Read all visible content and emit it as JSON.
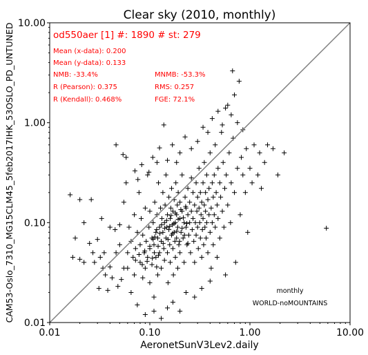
{
  "chart_data": {
    "type": "scatter",
    "title": "Clear sky (2010, monthly)",
    "xlabel": "AeronetSunV3Lev2.daily",
    "ylabel": "CAM53-Oslo_7310_MG15CLM45_5feb2017IHK_53OSLO_PD_UNTUNED",
    "xscale": "log",
    "yscale": "log",
    "xlim": [
      0.01,
      10.0
    ],
    "ylim": [
      0.01,
      10.0
    ],
    "xticks": [
      "0.01",
      "0.10",
      "1.00",
      "10.00"
    ],
    "yticks": [
      "0.01",
      "0.10",
      "1.00",
      "10.00"
    ],
    "tick_values": [
      0.01,
      0.1,
      1.0,
      10.0
    ],
    "grid": false,
    "marker": "+",
    "marker_color": "#000000",
    "reference_line": {
      "type": "1:1",
      "color": "#808080"
    },
    "annotations": {
      "color": "#ff0000",
      "header": "od550aer [1] #: 1890 # st: 279",
      "left": [
        "Mean (x-data): 0.200",
        "Mean (y-data): 0.133",
        "NMB: -33.4%",
        "R (Pearson): 0.375",
        "R (Kendall): 0.468%"
      ],
      "right": [
        "MNMB: -53.3%",
        "RMS: 0.257",
        "FGE: 72.1%"
      ]
    },
    "footer_notes": [
      "monthly",
      "WORLD-noMOUNTAINS"
    ],
    "series": [
      {
        "points": [
          [
            0.016,
            0.19
          ],
          [
            0.017,
            0.045
          ],
          [
            0.018,
            0.07
          ],
          [
            0.02,
            0.043
          ],
          [
            0.02,
            0.17
          ],
          [
            0.022,
            0.04
          ],
          [
            0.022,
            0.1
          ],
          [
            0.025,
            0.062
          ],
          [
            0.027,
            0.05
          ],
          [
            0.028,
            0.04
          ],
          [
            0.03,
            0.068
          ],
          [
            0.031,
            0.022
          ],
          [
            0.032,
            0.045
          ],
          [
            0.034,
            0.035
          ],
          [
            0.035,
            0.05
          ],
          [
            0.036,
            0.03
          ],
          [
            0.038,
            0.021
          ],
          [
            0.04,
            0.09
          ],
          [
            0.04,
            0.036
          ],
          [
            0.042,
            0.028
          ],
          [
            0.045,
            0.085
          ],
          [
            0.046,
            0.05
          ],
          [
            0.048,
            0.023
          ],
          [
            0.05,
            0.095
          ],
          [
            0.05,
            0.06
          ],
          [
            0.052,
            0.027
          ],
          [
            0.055,
            0.16
          ],
          [
            0.055,
            0.035
          ],
          [
            0.058,
            0.25
          ],
          [
            0.06,
            0.05
          ],
          [
            0.06,
            0.035
          ],
          [
            0.062,
            0.09
          ],
          [
            0.065,
            0.02
          ],
          [
            0.065,
            0.065
          ],
          [
            0.068,
            0.045
          ],
          [
            0.07,
            0.12
          ],
          [
            0.07,
            0.03
          ],
          [
            0.072,
            0.055
          ],
          [
            0.075,
            0.08
          ],
          [
            0.075,
            0.015
          ],
          [
            0.078,
            0.2
          ],
          [
            0.08,
            0.04
          ],
          [
            0.08,
            0.06
          ],
          [
            0.082,
            0.11
          ],
          [
            0.085,
            0.028
          ],
          [
            0.085,
            0.075
          ],
          [
            0.088,
            0.05
          ],
          [
            0.09,
            0.14
          ],
          [
            0.09,
            0.035
          ],
          [
            0.092,
            0.065
          ],
          [
            0.095,
            0.3
          ],
          [
            0.095,
            0.045
          ],
          [
            0.098,
            0.09
          ],
          [
            0.1,
            0.025
          ],
          [
            0.1,
            0.055
          ],
          [
            0.1,
            0.13
          ],
          [
            0.105,
            0.07
          ],
          [
            0.105,
            0.038
          ],
          [
            0.108,
            0.1
          ],
          [
            0.11,
            0.018
          ],
          [
            0.11,
            0.06
          ],
          [
            0.112,
            0.16
          ],
          [
            0.115,
            0.08
          ],
          [
            0.115,
            0.045
          ],
          [
            0.118,
            0.12
          ],
          [
            0.12,
            0.03
          ],
          [
            0.12,
            0.07
          ],
          [
            0.122,
            0.25
          ],
          [
            0.125,
            0.09
          ],
          [
            0.125,
            0.05
          ],
          [
            0.128,
            0.14
          ],
          [
            0.13,
            0.065
          ],
          [
            0.13,
            0.035
          ],
          [
            0.132,
            0.11
          ],
          [
            0.135,
            0.08
          ],
          [
            0.135,
            0.2
          ],
          [
            0.138,
            0.055
          ],
          [
            0.14,
            0.1
          ],
          [
            0.14,
            0.042
          ],
          [
            0.142,
            0.15
          ],
          [
            0.145,
            0.07
          ],
          [
            0.145,
            0.3
          ],
          [
            0.148,
            0.09
          ],
          [
            0.15,
            0.05
          ],
          [
            0.15,
            0.12
          ],
          [
            0.152,
            0.025
          ],
          [
            0.155,
            0.085
          ],
          [
            0.155,
            0.18
          ],
          [
            0.158,
            0.06
          ],
          [
            0.16,
            0.11
          ],
          [
            0.16,
            0.04
          ],
          [
            0.162,
            0.14
          ],
          [
            0.165,
            0.075
          ],
          [
            0.165,
            0.22
          ],
          [
            0.168,
            0.095
          ],
          [
            0.17,
            0.055
          ],
          [
            0.17,
            0.13
          ],
          [
            0.172,
            0.03
          ],
          [
            0.175,
            0.08
          ],
          [
            0.175,
            0.17
          ],
          [
            0.178,
            0.065
          ],
          [
            0.18,
            0.1
          ],
          [
            0.18,
            0.045
          ],
          [
            0.182,
            0.25
          ],
          [
            0.185,
            0.12
          ],
          [
            0.185,
            0.07
          ],
          [
            0.188,
            0.15
          ],
          [
            0.19,
            0.09
          ],
          [
            0.19,
            0.035
          ],
          [
            0.192,
            0.2
          ],
          [
            0.195,
            0.06
          ],
          [
            0.2,
            0.11
          ],
          [
            0.2,
            0.16
          ],
          [
            0.2,
            0.05
          ],
          [
            0.205,
            0.08
          ],
          [
            0.21,
            0.13
          ],
          [
            0.21,
            0.3
          ],
          [
            0.215,
            0.07
          ],
          [
            0.22,
            0.1
          ],
          [
            0.22,
            0.04
          ],
          [
            0.225,
            0.18
          ],
          [
            0.23,
            0.09
          ],
          [
            0.23,
            0.14
          ],
          [
            0.235,
            0.06
          ],
          [
            0.24,
            0.12
          ],
          [
            0.24,
            0.22
          ],
          [
            0.245,
            0.075
          ],
          [
            0.25,
            0.1
          ],
          [
            0.25,
            0.16
          ],
          [
            0.255,
            0.05
          ],
          [
            0.26,
            0.13
          ],
          [
            0.26,
            0.28
          ],
          [
            0.265,
            0.085
          ],
          [
            0.27,
            0.2
          ],
          [
            0.27,
            0.11
          ],
          [
            0.275,
            0.065
          ],
          [
            0.28,
            0.15
          ],
          [
            0.28,
            0.04
          ],
          [
            0.285,
            0.1
          ],
          [
            0.29,
            0.25
          ],
          [
            0.29,
            0.075
          ],
          [
            0.295,
            0.13
          ],
          [
            0.3,
            0.18
          ],
          [
            0.3,
            0.09
          ],
          [
            0.305,
            0.055
          ],
          [
            0.31,
            0.14
          ],
          [
            0.31,
            0.35
          ],
          [
            0.315,
            0.1
          ],
          [
            0.32,
            0.2
          ],
          [
            0.32,
            0.07
          ],
          [
            0.325,
            0.12
          ],
          [
            0.33,
            0.16
          ],
          [
            0.33,
            0.045
          ],
          [
            0.335,
            0.085
          ],
          [
            0.34,
            0.25
          ],
          [
            0.34,
            0.11
          ],
          [
            0.345,
            0.06
          ],
          [
            0.35,
            0.15
          ],
          [
            0.35,
            0.4
          ],
          [
            0.355,
            0.09
          ],
          [
            0.36,
            0.2
          ],
          [
            0.36,
            0.13
          ],
          [
            0.365,
            0.07
          ],
          [
            0.37,
            0.3
          ],
          [
            0.37,
            0.1
          ],
          [
            0.38,
            0.17
          ],
          [
            0.38,
            0.05
          ],
          [
            0.39,
            0.12
          ],
          [
            0.39,
            0.22
          ],
          [
            0.4,
            0.08
          ],
          [
            0.4,
            0.5
          ],
          [
            0.41,
            0.14
          ],
          [
            0.41,
            0.035
          ],
          [
            0.42,
            0.25
          ],
          [
            0.42,
            0.1
          ],
          [
            0.43,
            0.18
          ],
          [
            0.43,
            0.06
          ],
          [
            0.44,
            0.3
          ],
          [
            0.44,
            0.12
          ],
          [
            0.45,
            0.09
          ],
          [
            0.45,
            0.6
          ],
          [
            0.46,
            0.2
          ],
          [
            0.47,
            0.15
          ],
          [
            0.47,
            0.045
          ],
          [
            0.48,
            0.35
          ],
          [
            0.48,
            0.11
          ],
          [
            0.5,
            0.25
          ],
          [
            0.5,
            0.07
          ],
          [
            0.51,
            0.18
          ],
          [
            0.52,
            0.8
          ],
          [
            0.53,
            0.13
          ],
          [
            0.54,
            0.4
          ],
          [
            0.55,
            0.09
          ],
          [
            0.56,
            0.22
          ],
          [
            0.57,
            0.03
          ],
          [
            0.58,
            0.3
          ],
          [
            0.6,
            0.15
          ],
          [
            0.6,
            1.5
          ],
          [
            0.62,
            0.5
          ],
          [
            0.64,
            0.1
          ],
          [
            0.65,
            0.25
          ],
          [
            0.67,
            3.3
          ],
          [
            0.68,
            0.7
          ],
          [
            0.7,
            0.2
          ],
          [
            0.72,
            0.04
          ],
          [
            0.75,
            0.35
          ],
          [
            0.78,
            2.6
          ],
          [
            0.8,
            0.12
          ],
          [
            0.82,
            0.45
          ],
          [
            0.85,
            0.3
          ],
          [
            0.9,
            0.2
          ],
          [
            0.92,
            0.55
          ],
          [
            0.95,
            0.08
          ],
          [
            1.0,
            0.35
          ],
          [
            1.05,
            0.25
          ],
          [
            1.1,
            0.6
          ],
          [
            1.2,
            0.3
          ],
          [
            1.25,
            0.5
          ],
          [
            1.3,
            0.22
          ],
          [
            1.4,
            0.4
          ],
          [
            1.5,
            0.6
          ],
          [
            1.7,
            0.55
          ],
          [
            1.9,
            0.3
          ],
          [
            2.2,
            0.5
          ],
          [
            5.8,
            0.088
          ],
          [
            0.026,
            0.17
          ],
          [
            0.033,
            0.11
          ],
          [
            0.046,
            0.6
          ],
          [
            0.054,
            0.48
          ],
          [
            0.058,
            0.45
          ],
          [
            0.071,
            0.33
          ],
          [
            0.076,
            0.27
          ],
          [
            0.083,
            0.38
          ],
          [
            0.098,
            0.32
          ],
          [
            0.107,
            0.45
          ],
          [
            0.118,
            0.4
          ],
          [
            0.125,
            0.56
          ],
          [
            0.138,
            0.95
          ],
          [
            0.15,
            0.42
          ],
          [
            0.168,
            0.6
          ],
          [
            0.185,
            0.4
          ],
          [
            0.2,
            0.5
          ],
          [
            0.225,
            0.72
          ],
          [
            0.26,
            0.55
          ],
          [
            0.3,
            0.65
          ],
          [
            0.34,
            0.9
          ],
          [
            0.38,
            0.8
          ],
          [
            0.42,
            1.1
          ],
          [
            0.48,
            1.3
          ],
          [
            0.53,
            0.95
          ],
          [
            0.57,
            1.4
          ],
          [
            0.65,
            1.2
          ],
          [
            0.7,
            1.9
          ],
          [
            0.75,
            1.0
          ],
          [
            0.85,
            0.85
          ],
          [
            0.09,
            0.012
          ],
          [
            0.11,
            0.013
          ],
          [
            0.13,
            0.011
          ],
          [
            0.15,
            0.014
          ],
          [
            0.17,
            0.016
          ],
          [
            0.2,
            0.013
          ],
          [
            0.23,
            0.02
          ],
          [
            0.28,
            0.018
          ],
          [
            0.33,
            0.022
          ],
          [
            0.4,
            0.026
          ],
          [
            0.108,
            0.068
          ],
          [
            0.112,
            0.072
          ],
          [
            0.117,
            0.085
          ],
          [
            0.121,
            0.058
          ],
          [
            0.126,
            0.078
          ],
          [
            0.131,
            0.095
          ],
          [
            0.136,
            0.062
          ],
          [
            0.141,
            0.088
          ],
          [
            0.147,
            0.105
          ],
          [
            0.152,
            0.068
          ],
          [
            0.158,
            0.092
          ],
          [
            0.163,
            0.118
          ],
          [
            0.169,
            0.078
          ],
          [
            0.174,
            0.098
          ],
          [
            0.18,
            0.125
          ],
          [
            0.186,
            0.082
          ],
          [
            0.192,
            0.108
          ],
          [
            0.198,
            0.065
          ],
          [
            0.204,
            0.135
          ],
          [
            0.21,
            0.088
          ],
          [
            0.216,
            0.112
          ],
          [
            0.222,
            0.075
          ],
          [
            0.228,
            0.145
          ],
          [
            0.234,
            0.098
          ],
          [
            0.24,
            0.062
          ],
          [
            0.072,
            0.042
          ],
          [
            0.078,
            0.048
          ],
          [
            0.084,
            0.038
          ],
          [
            0.089,
            0.052
          ],
          [
            0.094,
            0.041
          ],
          [
            0.1,
            0.058
          ],
          [
            0.106,
            0.044
          ],
          [
            0.111,
            0.05
          ],
          [
            0.117,
            0.036
          ],
          [
            0.122,
            0.047
          ]
        ]
      }
    ]
  }
}
